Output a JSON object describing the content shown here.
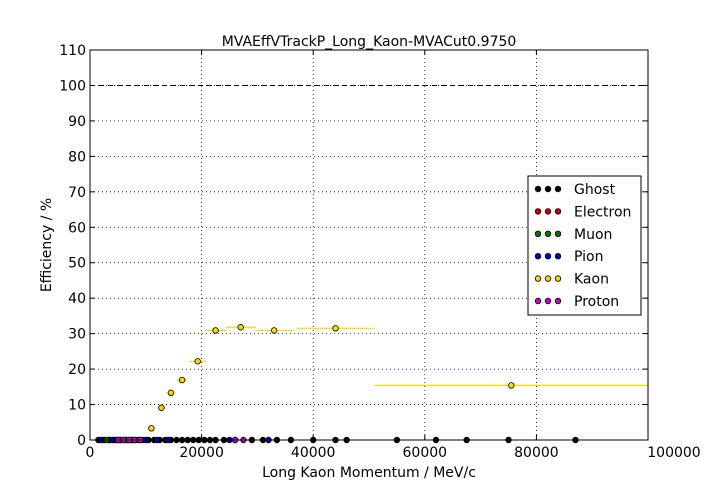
{
  "chart_data": {
    "type": "scatter",
    "title": "MVAEffVTrackP_Long_Kaon-MVACut0.9750",
    "xlabel": "Long Kaon Momentum / MeV/c",
    "ylabel": "Efficiency / %",
    "xlim": [
      0,
      100000
    ],
    "ylim": [
      0,
      110
    ],
    "x_ticks": [
      "0",
      "20000",
      "40000",
      "60000",
      "80000",
      "100000"
    ],
    "y_ticks": [
      "0",
      "10",
      "20",
      "30",
      "40",
      "50",
      "60",
      "70",
      "80",
      "90",
      "100",
      "110"
    ],
    "grid": true,
    "reference_line": {
      "y": 100,
      "style": "dashed"
    },
    "legend_position": "right",
    "series": [
      {
        "name": "Ghost",
        "color": "#000000",
        "points": [
          {
            "x": 1500,
            "y": 0
          },
          {
            "x": 2500,
            "y": 0
          },
          {
            "x": 3500,
            "y": 0
          },
          {
            "x": 4500,
            "y": 0
          },
          {
            "x": 5500,
            "y": 0
          },
          {
            "x": 6500,
            "y": 0
          },
          {
            "x": 7500,
            "y": 0
          },
          {
            "x": 8500,
            "y": 0
          },
          {
            "x": 9500,
            "y": 0
          },
          {
            "x": 10500,
            "y": 0
          },
          {
            "x": 11500,
            "y": 0
          },
          {
            "x": 12500,
            "y": 0
          },
          {
            "x": 13500,
            "y": 0
          },
          {
            "x": 14500,
            "y": 0
          },
          {
            "x": 15500,
            "y": 0
          },
          {
            "x": 16500,
            "y": 0
          },
          {
            "x": 17500,
            "y": 0
          },
          {
            "x": 18500,
            "y": 0
          },
          {
            "x": 19500,
            "y": 0
          },
          {
            "x": 20500,
            "y": 0
          },
          {
            "x": 21500,
            "y": 0
          },
          {
            "x": 22500,
            "y": 0
          },
          {
            "x": 24000,
            "y": 0
          },
          {
            "x": 26000,
            "y": 0
          },
          {
            "x": 29000,
            "y": 0
          },
          {
            "x": 31000,
            "y": 0
          },
          {
            "x": 33500,
            "y": 0
          },
          {
            "x": 36000,
            "y": 0
          },
          {
            "x": 40000,
            "y": 0
          },
          {
            "x": 44000,
            "y": 0
          },
          {
            "x": 46000,
            "y": 0
          },
          {
            "x": 55000,
            "y": 0
          },
          {
            "x": 62000,
            "y": 0
          },
          {
            "x": 67500,
            "y": 0
          },
          {
            "x": 75000,
            "y": 0
          },
          {
            "x": 87000,
            "y": 0
          }
        ]
      },
      {
        "name": "Electron",
        "color": "#cc0000",
        "points": [
          {
            "x": 2500,
            "y": 0
          },
          {
            "x": 3500,
            "y": 0
          },
          {
            "x": 4500,
            "y": 0
          },
          {
            "x": 5500,
            "y": 0
          },
          {
            "x": 6500,
            "y": 0
          },
          {
            "x": 7500,
            "y": 0
          }
        ]
      },
      {
        "name": "Muon",
        "color": "#007700",
        "points": [
          {
            "x": 3000,
            "y": 0
          },
          {
            "x": 5000,
            "y": 0
          },
          {
            "x": 7000,
            "y": 0
          },
          {
            "x": 9000,
            "y": 0
          }
        ]
      },
      {
        "name": "Pion",
        "color": "#0000bb",
        "points": [
          {
            "x": 2000,
            "y": 0
          },
          {
            "x": 4000,
            "y": 0
          },
          {
            "x": 6000,
            "y": 0
          },
          {
            "x": 8000,
            "y": 0
          },
          {
            "x": 10000,
            "y": 0
          },
          {
            "x": 12000,
            "y": 0
          },
          {
            "x": 14000,
            "y": 0
          },
          {
            "x": 25000,
            "y": 0
          },
          {
            "x": 32000,
            "y": 0
          }
        ]
      },
      {
        "name": "Kaon",
        "color": "#ffd700",
        "points": [
          {
            "x": 11000,
            "y": 3.3,
            "xerr": 500
          },
          {
            "x": 12800,
            "y": 9.1,
            "xerr": 700
          },
          {
            "x": 14500,
            "y": 13.3,
            "xerr": 800
          },
          {
            "x": 16500,
            "y": 16.9,
            "xerr": 1000
          },
          {
            "x": 19300,
            "y": 22.2,
            "xerr": 1500
          },
          {
            "x": 22500,
            "y": 30.9,
            "xerr": 2000
          },
          {
            "x": 27000,
            "y": 31.8,
            "xerr": 2700
          },
          {
            "x": 33000,
            "y": 30.9,
            "xerr": 3500
          },
          {
            "x": 44000,
            "y": 31.5,
            "xerr": 7000
          },
          {
            "x": 75500,
            "y": 15.4,
            "xerr": 24500
          }
        ]
      },
      {
        "name": "Proton",
        "color": "#cc00cc",
        "points": [
          {
            "x": 5000,
            "y": 0
          },
          {
            "x": 6000,
            "y": 0
          },
          {
            "x": 7000,
            "y": 0
          },
          {
            "x": 8000,
            "y": 0
          },
          {
            "x": 9000,
            "y": 0
          },
          {
            "x": 26000,
            "y": 0
          },
          {
            "x": 27500,
            "y": 0
          }
        ]
      }
    ]
  }
}
